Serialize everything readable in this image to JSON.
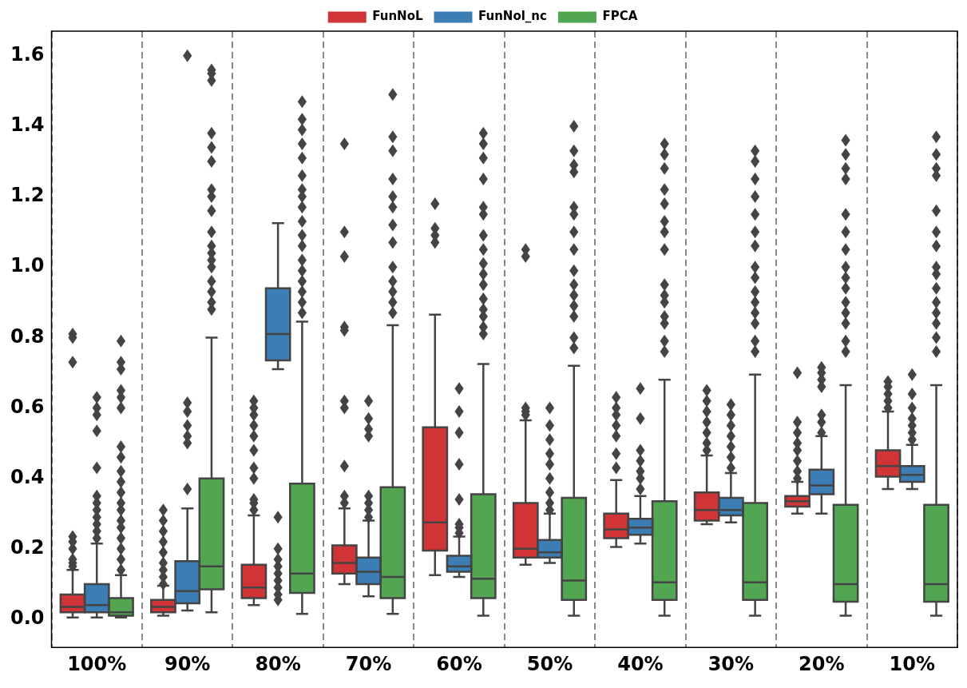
{
  "chart_data": {
    "type": "box",
    "categories": [
      "100%",
      "90%",
      "80%",
      "70%",
      "60%",
      "50%",
      "40%",
      "30%",
      "20%",
      "10%"
    ],
    "ylim": [
      -0.08,
      1.67
    ],
    "yticks": [
      {
        "value": 0,
        "label": "0.0"
      },
      0.2,
      0.4,
      0.6,
      0.8,
      {
        "value": 1,
        "label": "1.0"
      },
      1.2,
      1.4,
      1.6
    ],
    "grid": "x",
    "legend": "top",
    "marker": "diamond",
    "series": [
      {
        "name": "FunNoL",
        "color": "#d03436",
        "boxes": [
          {
            "low": 0.005,
            "q1": 0.02,
            "median": 0.035,
            "q3": 0.07,
            "high": 0.14,
            "outliers": [
              0.15,
              0.16,
              0.17,
              0.2,
              0.22,
              0.235,
              0.73,
              0.8,
              0.81
            ]
          },
          {
            "low": 0.01,
            "q1": 0.02,
            "median": 0.035,
            "q3": 0.055,
            "high": 0.095,
            "outliers": [
              0.1,
              0.12,
              0.14,
              0.16,
              0.19,
              0.22,
              0.25,
              0.28,
              0.31
            ]
          },
          {
            "low": 0.04,
            "q1": 0.06,
            "median": 0.09,
            "q3": 0.155,
            "high": 0.295,
            "outliers": [
              0.31,
              0.33,
              0.34,
              0.4,
              0.43,
              0.48,
              0.52,
              0.55,
              0.58,
              0.6,
              0.62
            ]
          },
          {
            "low": 0.1,
            "q1": 0.13,
            "median": 0.16,
            "q3": 0.21,
            "high": 0.315,
            "outliers": [
              0.33,
              0.35,
              0.435,
              0.6,
              0.62,
              0.82,
              0.83,
              1.03,
              1.1,
              1.35
            ]
          },
          {
            "low": 0.125,
            "q1": 0.195,
            "median": 0.275,
            "q3": 0.545,
            "high": 0.865,
            "outliers": [
              1.07,
              1.09,
              1.11,
              1.18
            ]
          },
          {
            "low": 0.155,
            "q1": 0.175,
            "median": 0.2,
            "q3": 0.33,
            "high": 0.565,
            "outliers": [
              0.58,
              0.59,
              0.6,
              1.03,
              1.05
            ]
          },
          {
            "low": 0.205,
            "q1": 0.23,
            "median": 0.255,
            "q3": 0.3,
            "high": 0.395,
            "outliers": [
              0.43,
              0.47,
              0.52,
              0.55,
              0.58,
              0.6,
              0.63
            ]
          },
          {
            "low": 0.27,
            "q1": 0.28,
            "median": 0.31,
            "q3": 0.36,
            "high": 0.465,
            "outliers": [
              0.48,
              0.5,
              0.53,
              0.56,
              0.59,
              0.62,
              0.65
            ]
          },
          {
            "low": 0.3,
            "q1": 0.32,
            "median": 0.335,
            "q3": 0.35,
            "high": 0.39,
            "outliers": [
              0.4,
              0.42,
              0.45,
              0.48,
              0.5,
              0.53,
              0.56,
              0.7
            ]
          },
          {
            "low": 0.37,
            "q1": 0.405,
            "median": 0.435,
            "q3": 0.48,
            "high": 0.59,
            "outliers": [
              0.6,
              0.62,
              0.64,
              0.66,
              0.675
            ]
          }
        ]
      },
      {
        "name": "FunNol_nc",
        "color": "#3d7db6",
        "boxes": [
          {
            "low": 0.005,
            "q1": 0.02,
            "median": 0.04,
            "q3": 0.1,
            "high": 0.215,
            "outliers": [
              0.23,
              0.25,
              0.27,
              0.29,
              0.31,
              0.33,
              0.35,
              0.43,
              0.535,
              0.58,
              0.6,
              0.63
            ]
          },
          {
            "low": 0.025,
            "q1": 0.045,
            "median": 0.08,
            "q3": 0.165,
            "high": 0.315,
            "outliers": [
              0.37,
              0.5,
              0.52,
              0.55,
              0.59,
              0.615,
              1.6
            ]
          },
          {
            "low": 0.71,
            "q1": 0.735,
            "median": 0.81,
            "q3": 0.94,
            "high": 1.125,
            "outliers": [
              0.055,
              0.07,
              0.09,
              0.11,
              0.13,
              0.15,
              0.17,
              0.2,
              0.29
            ]
          },
          {
            "low": 0.065,
            "q1": 0.1,
            "median": 0.135,
            "q3": 0.175,
            "high": 0.28,
            "outliers": [
              0.29,
              0.31,
              0.33,
              0.35,
              0.52,
              0.54,
              0.57,
              0.62
            ]
          },
          {
            "low": 0.12,
            "q1": 0.135,
            "median": 0.15,
            "q3": 0.18,
            "high": 0.235,
            "outliers": [
              0.245,
              0.26,
              0.27,
              0.34,
              0.44,
              0.53,
              0.59,
              0.655
            ]
          },
          {
            "low": 0.16,
            "q1": 0.175,
            "median": 0.19,
            "q3": 0.225,
            "high": 0.3,
            "outliers": [
              0.31,
              0.33,
              0.36,
              0.4,
              0.44,
              0.47,
              0.51,
              0.55,
              0.6
            ]
          },
          {
            "low": 0.215,
            "q1": 0.24,
            "median": 0.26,
            "q3": 0.285,
            "high": 0.35,
            "outliers": [
              0.37,
              0.4,
              0.42,
              0.45,
              0.48,
              0.57,
              0.655
            ]
          },
          {
            "low": 0.275,
            "q1": 0.295,
            "median": 0.31,
            "q3": 0.345,
            "high": 0.415,
            "outliers": [
              0.43,
              0.46,
              0.49,
              0.52,
              0.55,
              0.58,
              0.61
            ]
          },
          {
            "low": 0.3,
            "q1": 0.355,
            "median": 0.38,
            "q3": 0.425,
            "high": 0.52,
            "outliers": [
              0.53,
              0.56,
              0.58,
              0.66,
              0.68,
              0.7,
              0.715
            ]
          },
          {
            "low": 0.37,
            "q1": 0.39,
            "median": 0.41,
            "q3": 0.435,
            "high": 0.495,
            "outliers": [
              0.51,
              0.53,
              0.55,
              0.57,
              0.6,
              0.64,
              0.695
            ]
          }
        ]
      },
      {
        "name": "FPCA",
        "color": "#52a651",
        "boxes": [
          {
            "low": 0.005,
            "q1": 0.01,
            "median": 0.02,
            "q3": 0.06,
            "high": 0.125,
            "outliers": [
              0.14,
              0.17,
              0.2,
              0.23,
              0.26,
              0.28,
              0.31,
              0.33,
              0.36,
              0.39,
              0.42,
              0.46,
              0.49,
              0.6,
              0.63,
              0.65,
              0.71,
              0.73,
              0.79
            ]
          },
          {
            "low": 0.02,
            "q1": 0.085,
            "median": 0.15,
            "q3": 0.4,
            "high": 0.8,
            "outliers": [
              0.88,
              0.9,
              0.93,
              0.96,
              1.0,
              1.02,
              1.04,
              1.06,
              1.1,
              1.16,
              1.2,
              1.22,
              1.3,
              1.34,
              1.38,
              1.53,
              1.55,
              1.56
            ]
          },
          {
            "low": 0.015,
            "q1": 0.075,
            "median": 0.13,
            "q3": 0.385,
            "high": 0.845,
            "outliers": [
              0.87,
              0.9,
              0.93,
              0.96,
              0.99,
              1.02,
              1.06,
              1.09,
              1.13,
              1.17,
              1.2,
              1.22,
              1.26,
              1.31,
              1.35,
              1.39,
              1.42,
              1.47
            ]
          },
          {
            "low": 0.015,
            "q1": 0.06,
            "median": 0.12,
            "q3": 0.375,
            "high": 0.835,
            "outliers": [
              0.87,
              0.9,
              0.93,
              0.96,
              1.0,
              1.07,
              1.12,
              1.17,
              1.2,
              1.25,
              1.33,
              1.37,
              1.49
            ]
          },
          {
            "low": 0.01,
            "q1": 0.06,
            "median": 0.115,
            "q3": 0.355,
            "high": 0.725,
            "outliers": [
              0.81,
              0.83,
              0.86,
              0.88,
              0.91,
              0.95,
              0.98,
              1.01,
              1.05,
              1.09,
              1.15,
              1.17,
              1.25,
              1.31,
              1.35,
              1.38
            ]
          },
          {
            "low": 0.01,
            "q1": 0.055,
            "median": 0.11,
            "q3": 0.345,
            "high": 0.72,
            "outliers": [
              0.77,
              0.8,
              0.86,
              0.89,
              0.92,
              0.95,
              0.99,
              1.05,
              1.1,
              1.15,
              1.17,
              1.27,
              1.29,
              1.33,
              1.4
            ]
          },
          {
            "low": 0.01,
            "q1": 0.055,
            "median": 0.105,
            "q3": 0.335,
            "high": 0.68,
            "outliers": [
              0.76,
              0.79,
              0.84,
              0.86,
              0.9,
              0.92,
              0.95,
              1.05,
              1.1,
              1.13,
              1.18,
              1.22,
              1.28,
              1.32,
              1.35
            ]
          },
          {
            "low": 0.01,
            "q1": 0.055,
            "median": 0.105,
            "q3": 0.33,
            "high": 0.695,
            "outliers": [
              0.76,
              0.79,
              0.84,
              0.87,
              0.9,
              0.93,
              0.97,
              1.0,
              1.06,
              1.1,
              1.15,
              1.2,
              1.25,
              1.3,
              1.33
            ]
          },
          {
            "low": 0.01,
            "q1": 0.05,
            "median": 0.1,
            "q3": 0.325,
            "high": 0.665,
            "outliers": [
              0.76,
              0.79,
              0.84,
              0.87,
              0.9,
              0.94,
              0.97,
              1.0,
              1.05,
              1.1,
              1.15,
              1.25,
              1.28,
              1.32,
              1.36
            ]
          },
          {
            "low": 0.01,
            "q1": 0.05,
            "median": 0.1,
            "q3": 0.325,
            "high": 0.665,
            "outliers": [
              0.76,
              0.8,
              0.84,
              0.87,
              0.9,
              0.94,
              0.98,
              1.0,
              1.06,
              1.1,
              1.16,
              1.26,
              1.28,
              1.32,
              1.37
            ]
          }
        ]
      }
    ]
  }
}
